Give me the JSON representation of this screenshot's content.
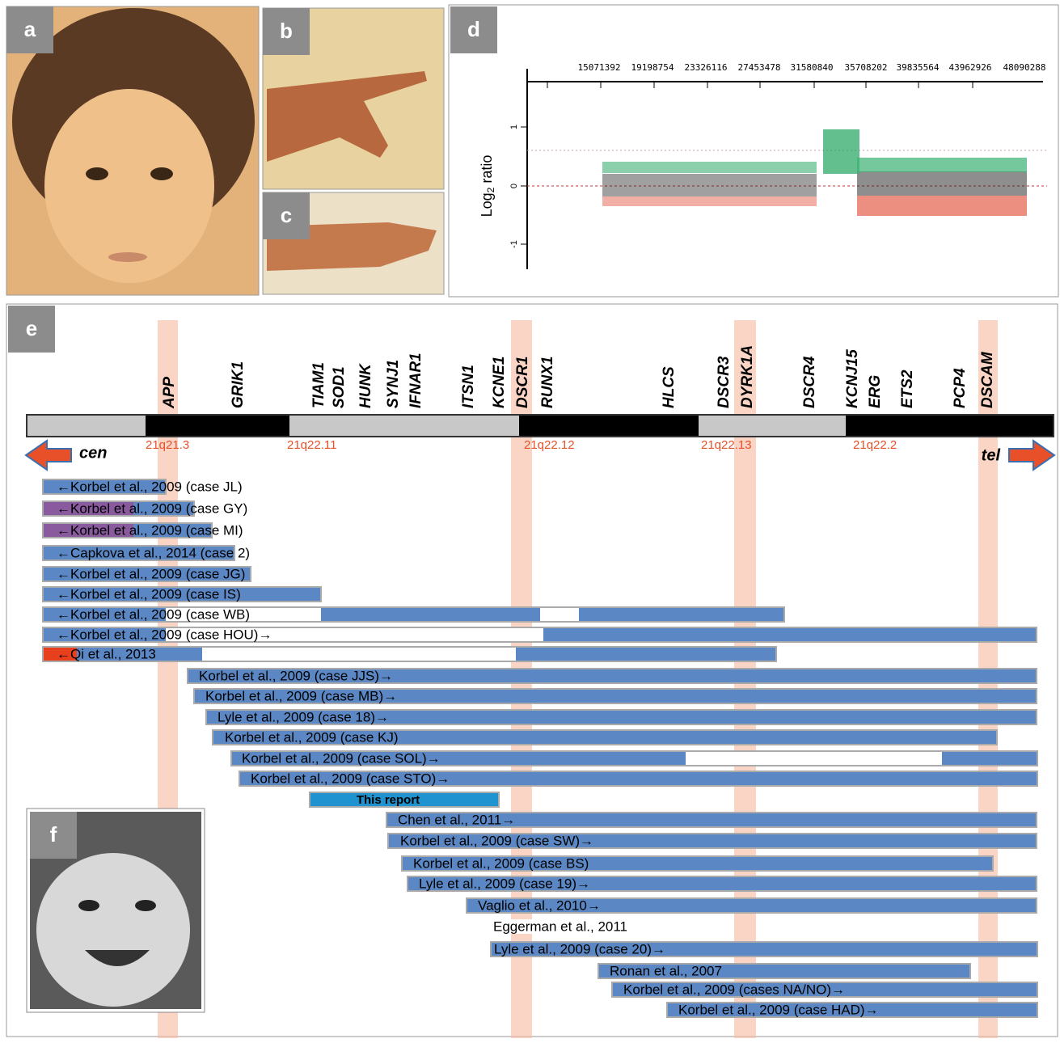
{
  "panels": [
    "a",
    "b",
    "c",
    "d",
    "e",
    "f"
  ],
  "plot_d": {
    "y_label": [
      "Log",
      "2",
      " ratio"
    ],
    "x_ticks": [
      "15071392",
      "19198754",
      "23326116",
      "27453478",
      "31580840",
      "35708202",
      "39835564",
      "43962926",
      "48090288"
    ],
    "y_ticks": [
      "1",
      "0",
      "-1"
    ]
  },
  "chromosome": {
    "genes": [
      "APP",
      "GRIK1",
      "TIAM1",
      "SOD1",
      "HUNK",
      "SYNJ1",
      "IFNAR1",
      "ITSN1",
      "KCNE1",
      "DSCR1",
      "RUNX1",
      "HLCS",
      "DSCR3",
      "DYRK1A",
      "DSCR4",
      "KCNJ15",
      "ERG",
      "ETS2",
      "PCP4",
      "DSCAM"
    ],
    "bands": [
      "21q21.3",
      "21q22.11",
      "21q22.12",
      "21q22.13",
      "21q22.2"
    ],
    "cen": "cen",
    "tel": "tel"
  },
  "cases": [
    "←Korbel et al., 2009 (case JL)",
    "←Korbel et al., 2009 (case GY)",
    "←Korbel et al., 2009 (case MI)",
    "←Capkova et al., 2014 (case 2)",
    "←Korbel et al., 2009 (case JG)",
    "←Korbel et al., 2009 (case IS)",
    "←Korbel et al., 2009 (case WB)",
    "←Korbel et al., 2009 (case HOU)→",
    "←Qi et al., 2013",
    "Korbel et al., 2009 (case JJS)→",
    "Korbel et al., 2009 (case MB)→",
    "Lyle et al., 2009 (case 18)→",
    "Korbel et al., 2009 (case KJ)",
    "Korbel et al., 2009 (case SOL)→",
    "Korbel et al., 2009 (case STO)→",
    "This report",
    "Chen et al., 2011→",
    "Korbel et al., 2009 (case SW)→",
    "Korbel et al., 2009 (case BS)",
    "Lyle et al., 2009 (case 19)→",
    "Vaglio et al., 2010→",
    "Eggerman et al., 2011",
    "Lyle et al., 2009 (case 20)→",
    "Ronan et al., 2007",
    "Korbel et al., 2009 (cases NA/NO)→",
    "Korbel et al., 2009 (case HAD)→"
  ]
}
